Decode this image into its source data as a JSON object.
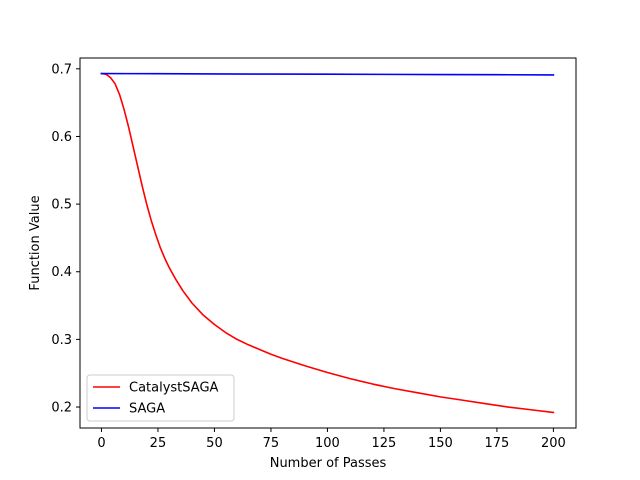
{
  "chart_data": {
    "type": "line",
    "title": "",
    "xlabel": "Number of Passes",
    "ylabel": "Function Value",
    "xlim": [
      -9.5,
      210
    ],
    "ylim": [
      0.169,
      0.716
    ],
    "xticks": [
      0,
      25,
      50,
      75,
      100,
      125,
      150,
      175,
      200
    ],
    "yticks": [
      0.2,
      0.3,
      0.4,
      0.5,
      0.6,
      0.7
    ],
    "xtick_labels": [
      "0",
      "25",
      "50",
      "75",
      "100",
      "125",
      "150",
      "175",
      "200"
    ],
    "ytick_labels": [
      "0.2",
      "0.3",
      "0.4",
      "0.5",
      "0.6",
      "0.7"
    ],
    "grid": false,
    "legend_position": "lower-left",
    "series": [
      {
        "name": "CatalystSAGA",
        "color": "#ff0000",
        "x": [
          0,
          2,
          4,
          6,
          8,
          10,
          12,
          14,
          16,
          18,
          20,
          22,
          24,
          26,
          28,
          30,
          33,
          36,
          40,
          45,
          50,
          55,
          60,
          65,
          70,
          75,
          80,
          90,
          100,
          110,
          120,
          130,
          140,
          150,
          160,
          170,
          180,
          190,
          200
        ],
        "y": [
          0.693,
          0.692,
          0.687,
          0.678,
          0.662,
          0.64,
          0.614,
          0.585,
          0.556,
          0.527,
          0.5,
          0.476,
          0.455,
          0.436,
          0.42,
          0.406,
          0.388,
          0.372,
          0.354,
          0.336,
          0.322,
          0.31,
          0.3,
          0.292,
          0.285,
          0.278,
          0.272,
          0.261,
          0.251,
          0.242,
          0.234,
          0.227,
          0.221,
          0.215,
          0.21,
          0.205,
          0.2,
          0.196,
          0.192
        ]
      },
      {
        "name": "SAGA",
        "color": "#0000ff",
        "x": [
          0,
          25,
          50,
          75,
          100,
          125,
          150,
          175,
          200
        ],
        "y": [
          0.693,
          0.6928,
          0.6925,
          0.6922,
          0.692,
          0.6918,
          0.6915,
          0.6913,
          0.691
        ]
      }
    ]
  }
}
